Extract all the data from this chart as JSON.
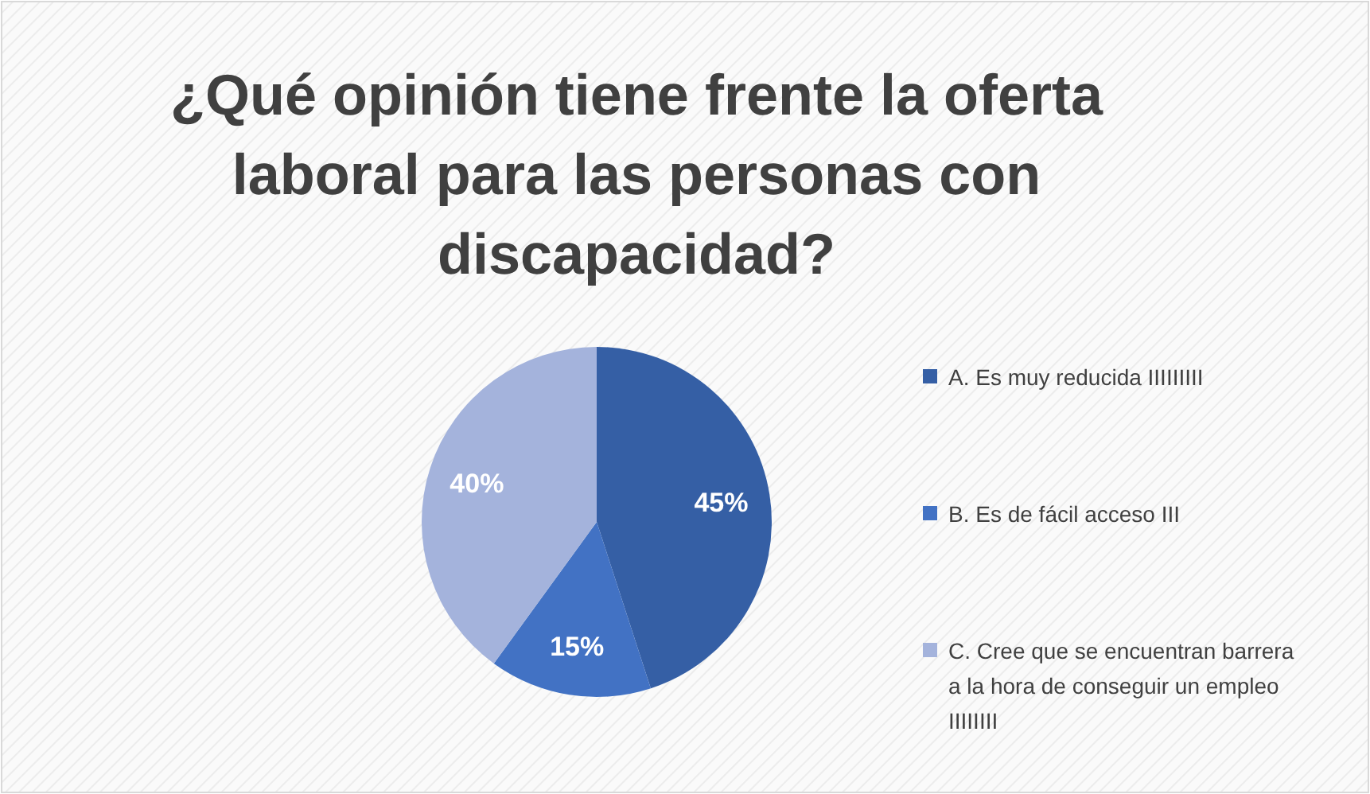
{
  "chart_data": {
    "type": "pie",
    "title": "¿Qué opinión tiene frente la oferta laboral para las personas con discapacidad?",
    "categories": [
      "A. Es muy reducida IIIIIIIII",
      "B. Es de fácil acceso III",
      "C. Cree que se encuentran barrera a la hora de conseguir un empleo IIIIIIII"
    ],
    "values": [
      45,
      15,
      40
    ],
    "value_labels": [
      "45%",
      "15%",
      "40%"
    ],
    "data_labels": true,
    "colors": [
      "#355fa5",
      "#4272c4",
      "#a4b3dc"
    ],
    "legend": "right"
  }
}
